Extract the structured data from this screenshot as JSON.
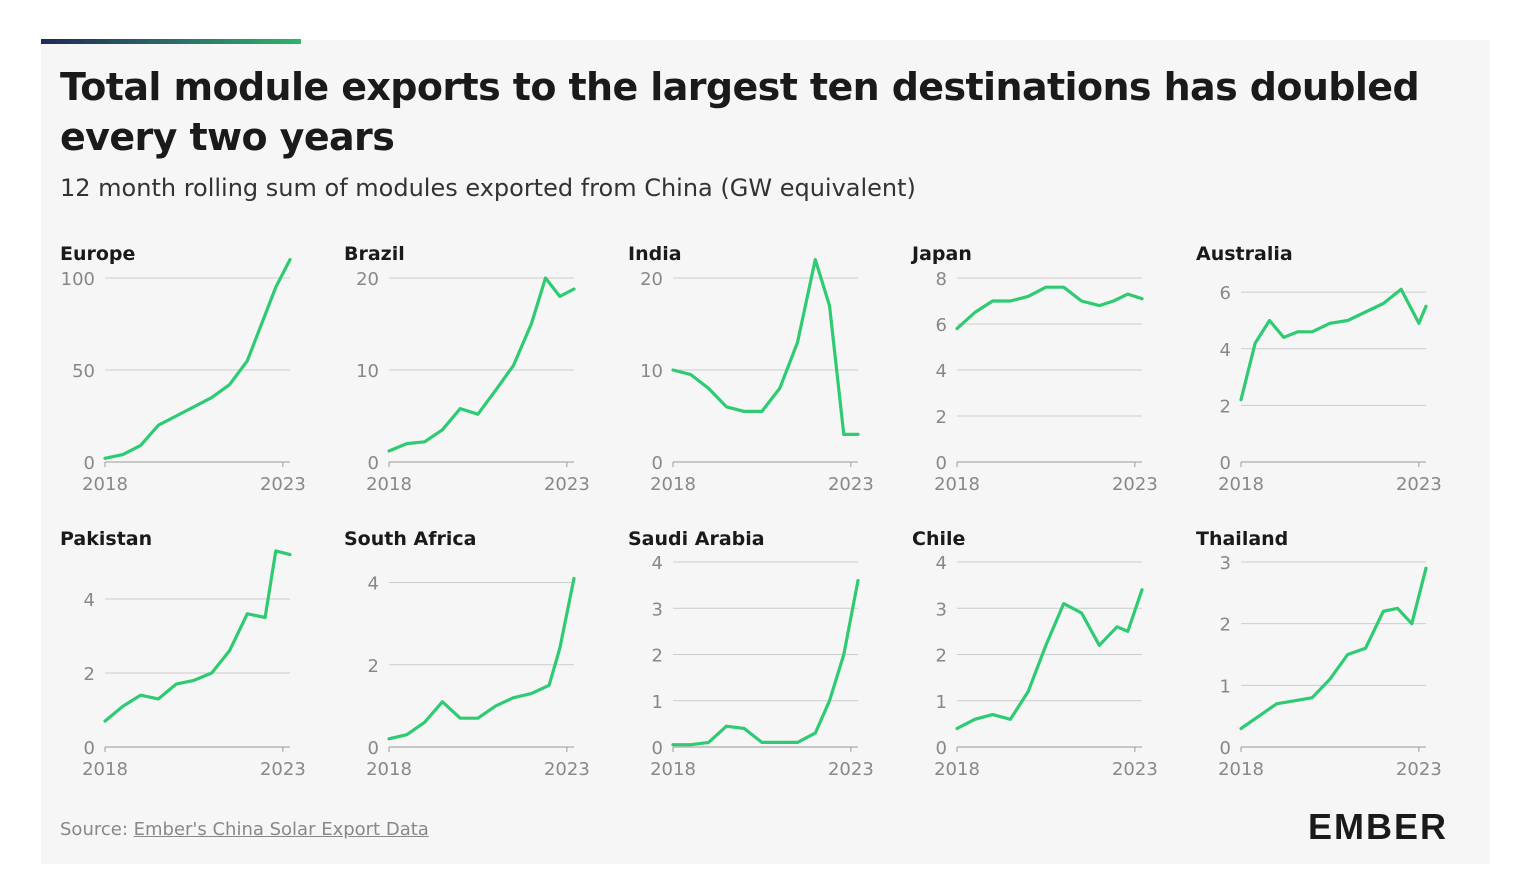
{
  "title": "Total module exports to the largest ten destinations has doubled every two years",
  "subtitle": "12 month rolling sum of modules exported from China (GW equivalent)",
  "source": {
    "prefix": "Source: ",
    "link_text": "Ember's China Solar Export Data"
  },
  "logo": {
    "text": "EMBER"
  },
  "colors": {
    "line": "#2ecb72",
    "grid": "#cccccc",
    "axis": "#999999",
    "background": "#f6f6f6",
    "title": "#1a1a1a"
  },
  "chart_data": [
    {
      "type": "line",
      "title": "Europe",
      "xticks": [
        "2018",
        "2023"
      ],
      "yticks": [
        0,
        50,
        100
      ],
      "ylim": [
        0,
        100
      ],
      "x": [
        2018,
        2018.5,
        2019,
        2019.5,
        2020,
        2020.5,
        2021,
        2021.5,
        2022,
        2022.5,
        2022.8,
        2023.2
      ],
      "values": [
        2,
        4,
        9,
        20,
        25,
        30,
        35,
        42,
        55,
        80,
        95,
        110
      ]
    },
    {
      "type": "line",
      "title": "Brazil",
      "xticks": [
        "2018",
        "2023"
      ],
      "yticks": [
        0,
        10,
        20
      ],
      "ylim": [
        0,
        20
      ],
      "x": [
        2018,
        2018.5,
        2019,
        2019.5,
        2020,
        2020.5,
        2021,
        2021.5,
        2022,
        2022.4,
        2022.8,
        2023.2
      ],
      "values": [
        1.2,
        2,
        2.2,
        3.5,
        5.8,
        5.2,
        7.8,
        10.5,
        15,
        20,
        18,
        18.8
      ]
    },
    {
      "type": "line",
      "title": "India",
      "xticks": [
        "2018",
        "2023"
      ],
      "yticks": [
        0,
        10,
        20
      ],
      "ylim": [
        0,
        20
      ],
      "x": [
        2018,
        2018.5,
        2019,
        2019.5,
        2020,
        2020.5,
        2021,
        2021.5,
        2022,
        2022.4,
        2022.8,
        2023.2
      ],
      "values": [
        10,
        9.5,
        8,
        6,
        5.5,
        5.5,
        8,
        13,
        22,
        17,
        3,
        3
      ]
    },
    {
      "type": "line",
      "title": "Japan",
      "xticks": [
        "2018",
        "2023"
      ],
      "yticks": [
        0,
        2,
        4,
        6,
        8
      ],
      "ylim": [
        0,
        8
      ],
      "x": [
        2018,
        2018.5,
        2019,
        2019.5,
        2020,
        2020.5,
        2021,
        2021.5,
        2022,
        2022.4,
        2022.8,
        2023.2
      ],
      "values": [
        5.8,
        6.5,
        7,
        7,
        7.2,
        7.6,
        7.6,
        7,
        6.8,
        7,
        7.3,
        7.1
      ]
    },
    {
      "type": "line",
      "title": "Australia",
      "xticks": [
        "2018",
        "2023"
      ],
      "yticks": [
        0,
        2,
        4,
        6
      ],
      "ylim": [
        0,
        6.5
      ],
      "x": [
        2018,
        2018.4,
        2018.8,
        2019.2,
        2019.6,
        2020,
        2020.5,
        2021,
        2021.5,
        2022,
        2022.5,
        2023,
        2023.2
      ],
      "values": [
        2.2,
        4.2,
        5,
        4.4,
        4.6,
        4.6,
        4.9,
        5,
        5.3,
        5.6,
        6.1,
        4.9,
        5.5
      ]
    },
    {
      "type": "line",
      "title": "Pakistan",
      "xticks": [
        "2018",
        "2023"
      ],
      "yticks": [
        0,
        2,
        4
      ],
      "ylim": [
        0,
        5
      ],
      "x": [
        2018,
        2018.5,
        2019,
        2019.5,
        2020,
        2020.5,
        2021,
        2021.5,
        2022,
        2022.5,
        2022.8,
        2023.2
      ],
      "values": [
        0.7,
        1.1,
        1.4,
        1.3,
        1.7,
        1.8,
        2,
        2.6,
        3.6,
        3.5,
        5.3,
        5.2
      ]
    },
    {
      "type": "line",
      "title": "South Africa",
      "xticks": [
        "2018",
        "2023"
      ],
      "yticks": [
        0,
        2,
        4
      ],
      "ylim": [
        0,
        4.5
      ],
      "x": [
        2018,
        2018.5,
        2019,
        2019.5,
        2020,
        2020.5,
        2021,
        2021.5,
        2022,
        2022.5,
        2022.8,
        2023.2
      ],
      "values": [
        0.2,
        0.3,
        0.6,
        1.1,
        0.7,
        0.7,
        1,
        1.2,
        1.3,
        1.5,
        2.4,
        4.1
      ]
    },
    {
      "type": "line",
      "title": "Saudi Arabia",
      "xticks": [
        "2018",
        "2023"
      ],
      "yticks": [
        0,
        1,
        2,
        3,
        4
      ],
      "ylim": [
        0,
        4
      ],
      "x": [
        2018,
        2018.5,
        2019,
        2019.5,
        2020,
        2020.5,
        2021,
        2021.5,
        2022,
        2022.4,
        2022.8,
        2023.2
      ],
      "values": [
        0.05,
        0.05,
        0.1,
        0.45,
        0.4,
        0.1,
        0.1,
        0.1,
        0.3,
        1,
        2,
        3.6
      ]
    },
    {
      "type": "line",
      "title": "Chile",
      "xticks": [
        "2018",
        "2023"
      ],
      "yticks": [
        0,
        1,
        2,
        3,
        4
      ],
      "ylim": [
        0,
        4
      ],
      "x": [
        2018,
        2018.5,
        2019,
        2019.5,
        2020,
        2020.5,
        2021,
        2021.5,
        2022,
        2022.5,
        2022.8,
        2023.2
      ],
      "values": [
        0.4,
        0.6,
        0.7,
        0.6,
        1.2,
        2.2,
        3.1,
        2.9,
        2.2,
        2.6,
        2.5,
        3.4
      ]
    },
    {
      "type": "line",
      "title": "Thailand",
      "xticks": [
        "2018",
        "2023"
      ],
      "yticks": [
        0,
        1,
        2,
        3
      ],
      "ylim": [
        0,
        3
      ],
      "x": [
        2018,
        2018.5,
        2019,
        2019.5,
        2020,
        2020.5,
        2021,
        2021.5,
        2022,
        2022.4,
        2022.8,
        2023.2
      ],
      "values": [
        0.3,
        0.5,
        0.7,
        0.75,
        0.8,
        1.1,
        1.5,
        1.6,
        2.2,
        2.25,
        2,
        2.9
      ]
    }
  ]
}
